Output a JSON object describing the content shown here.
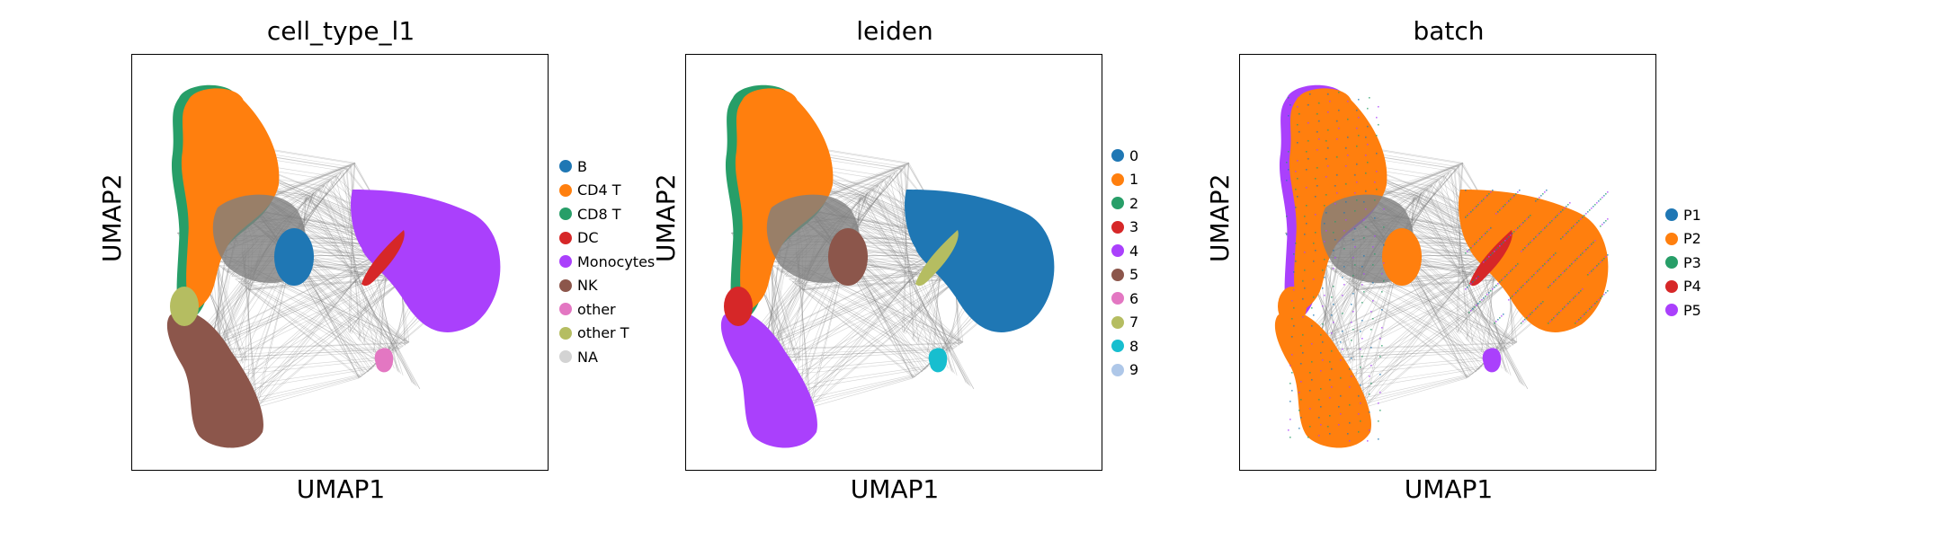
{
  "chart_data": [
    {
      "type": "scatter",
      "title": "cell_type_l1",
      "xlabel": "UMAP1",
      "ylabel": "UMAP2",
      "legend_position": "right",
      "categories": [
        {
          "name": "B",
          "color": "#1f77b4"
        },
        {
          "name": "CD4 T",
          "color": "#ff7f0e"
        },
        {
          "name": "CD8 T",
          "color": "#279e68"
        },
        {
          "name": "DC",
          "color": "#d62728"
        },
        {
          "name": "Monocytes",
          "color": "#aa40fc"
        },
        {
          "name": "NK",
          "color": "#8c564b"
        },
        {
          "name": "other",
          "color": "#e377c2"
        },
        {
          "name": "other T",
          "color": "#b5bd61"
        },
        {
          "name": "NA",
          "color": "#d3d3d3"
        }
      ]
    },
    {
      "type": "scatter",
      "title": "leiden",
      "xlabel": "UMAP1",
      "ylabel": "UMAP2",
      "legend_position": "right",
      "categories": [
        {
          "name": "0",
          "color": "#1f77b4"
        },
        {
          "name": "1",
          "color": "#ff7f0e"
        },
        {
          "name": "2",
          "color": "#279e68"
        },
        {
          "name": "3",
          "color": "#d62728"
        },
        {
          "name": "4",
          "color": "#aa40fc"
        },
        {
          "name": "5",
          "color": "#8c564b"
        },
        {
          "name": "6",
          "color": "#e377c2"
        },
        {
          "name": "7",
          "color": "#b5bd61"
        },
        {
          "name": "8",
          "color": "#17becf"
        },
        {
          "name": "9",
          "color": "#aec7e8"
        }
      ]
    },
    {
      "type": "scatter",
      "title": "batch",
      "xlabel": "UMAP1",
      "ylabel": "UMAP2",
      "legend_position": "right",
      "categories": [
        {
          "name": "P1",
          "color": "#1f77b4"
        },
        {
          "name": "P2",
          "color": "#ff7f0e"
        },
        {
          "name": "P3",
          "color": "#279e68"
        },
        {
          "name": "P4",
          "color": "#d62728"
        },
        {
          "name": "P5",
          "color": "#aa40fc"
        }
      ]
    }
  ]
}
